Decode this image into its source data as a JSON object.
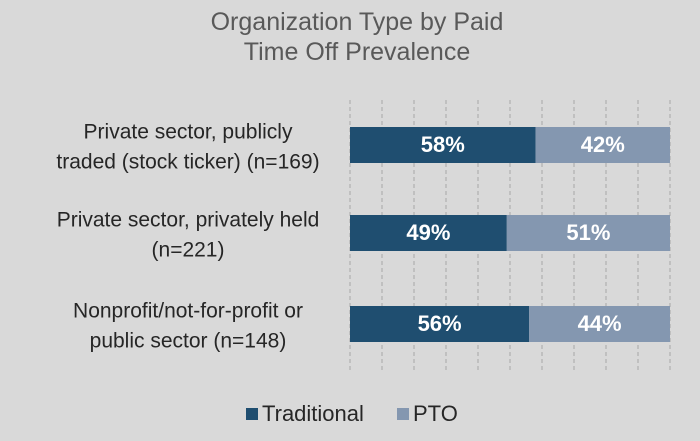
{
  "chart_data": {
    "type": "bar",
    "orientation": "horizontal",
    "stacking": "percent",
    "title": "Organization Type by Paid Time Off Prevalence",
    "categories": [
      "Private sector, publicly traded (stock ticker) (n=169)",
      "Private sector, privately held (n=221)",
      "Nonprofit/not-for-profit or public sector (n=148)"
    ],
    "category_lines": [
      [
        "Private sector, publicly",
        "traded (stock ticker) (n=169)"
      ],
      [
        "Private sector, privately held",
        "(n=221)"
      ],
      [
        "Nonprofit/not-for-profit or",
        "public sector (n=148)"
      ]
    ],
    "series": [
      {
        "name": "Traditional",
        "color": "#1f4e70",
        "values": [
          58,
          49,
          56
        ],
        "labels": [
          "58%",
          "49%",
          "56%"
        ]
      },
      {
        "name": "PTO",
        "color": "#8497b0",
        "values": [
          42,
          51,
          44
        ],
        "labels": [
          "42%",
          "51%",
          "44%"
        ]
      }
    ],
    "xlim": [
      0,
      100
    ],
    "grid": true,
    "legend": "bottom"
  }
}
